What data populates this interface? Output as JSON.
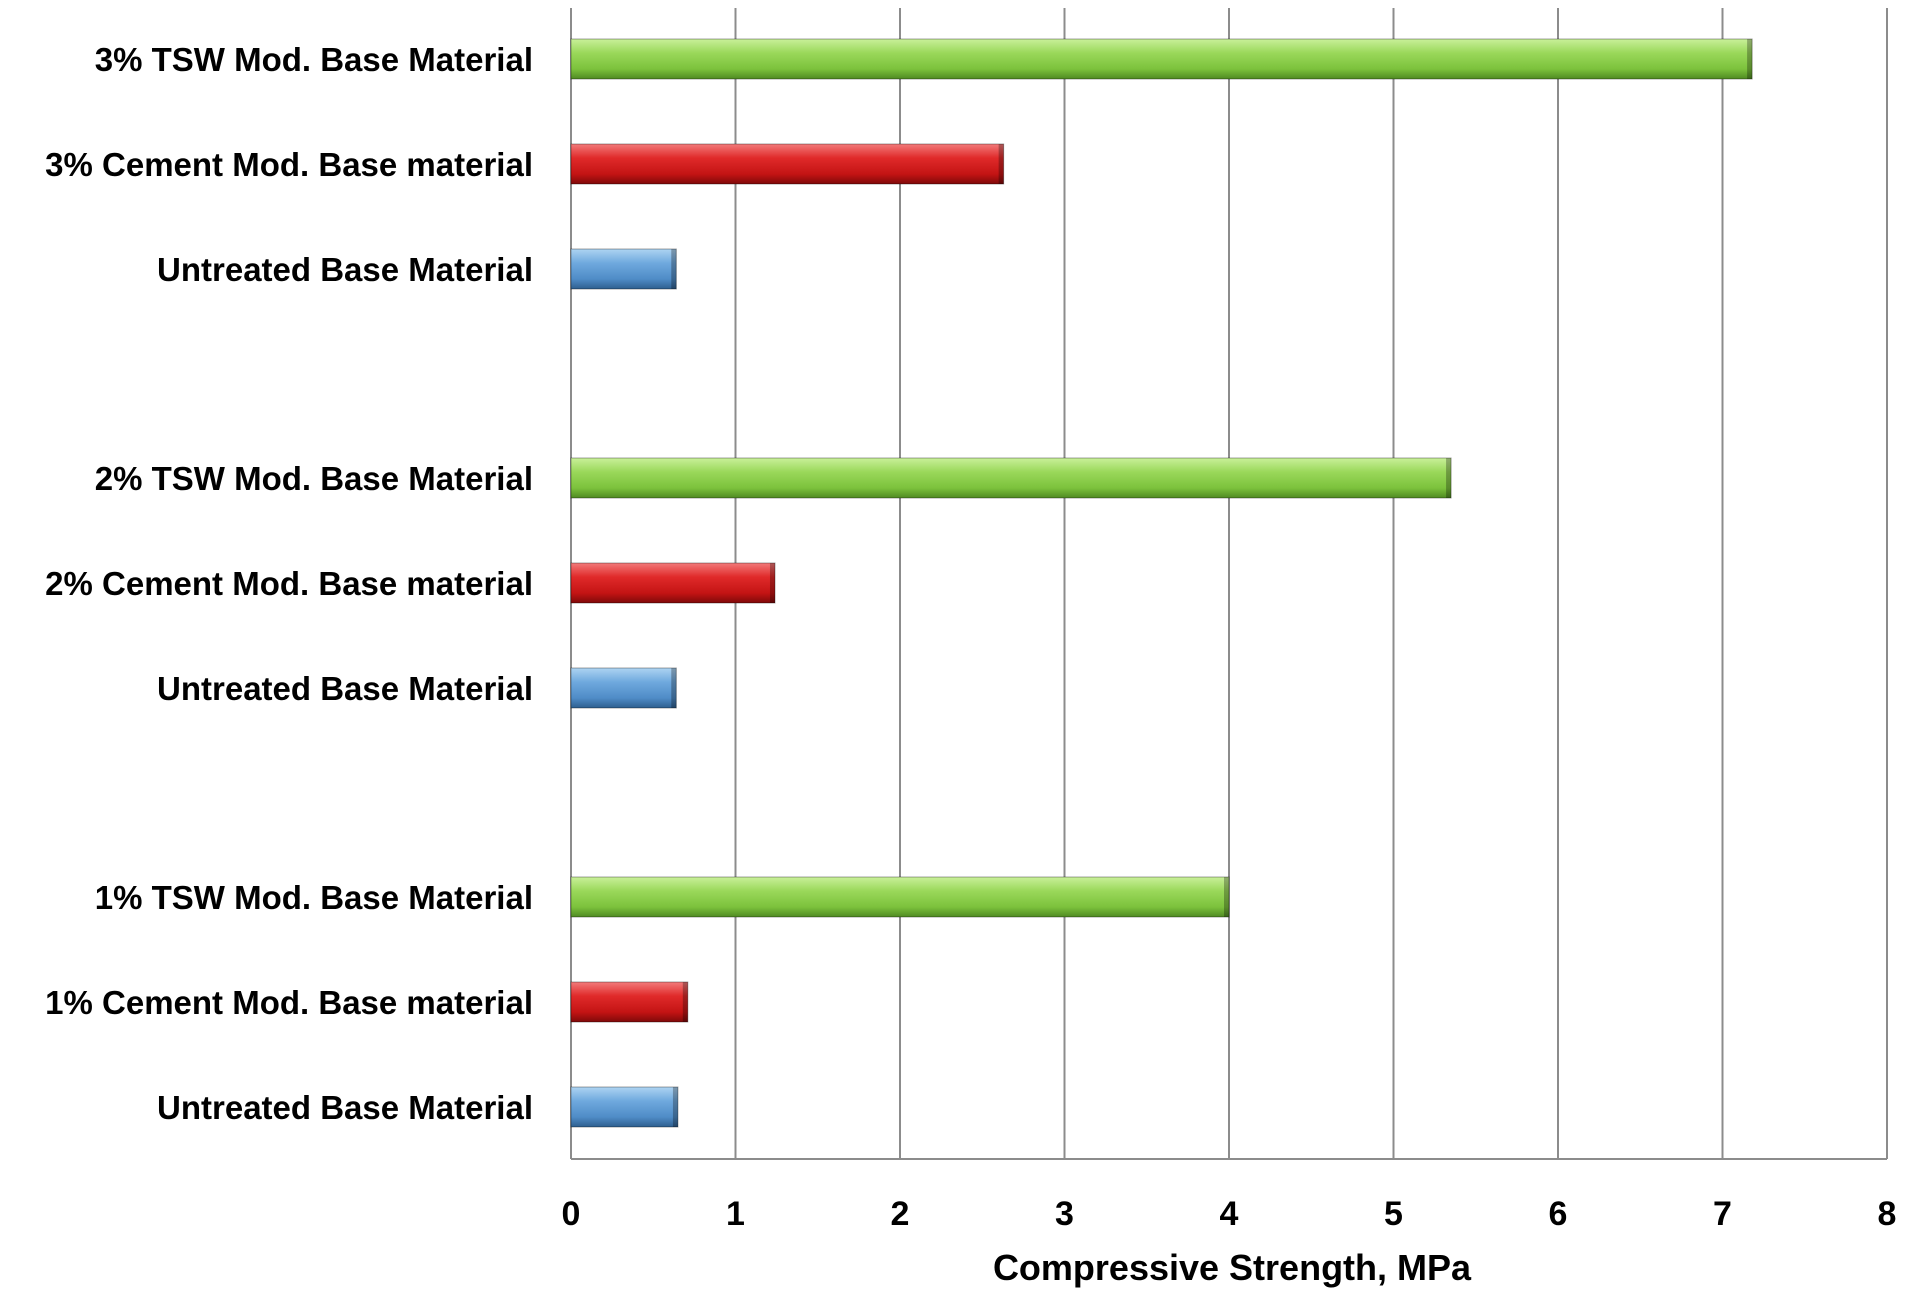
{
  "chart_data": {
    "type": "bar",
    "orientation": "horizontal",
    "title": "",
    "xlabel": "Compressive Strength, MPa",
    "ylabel": "",
    "xlim": [
      0,
      8
    ],
    "xticks": [
      0,
      1,
      2,
      3,
      4,
      5,
      6,
      7,
      8
    ],
    "grid": true,
    "legend": "none",
    "categories": [
      "3% TSW Mod. Base Material",
      "3% Cement Mod. Base material",
      "Untreated Base Material",
      "2% TSW Mod. Base Material",
      "2% Cement Mod. Base material",
      "Untreated Base Material",
      "1% TSW Mod. Base Material",
      "1% Cement Mod. Base material",
      "Untreated Base Material"
    ],
    "values": [
      7.18,
      2.63,
      0.64,
      5.35,
      1.24,
      0.64,
      4.0,
      0.71,
      0.65
    ],
    "bar_colors": [
      "#8fd14f",
      "#d42020",
      "#5b9bd5",
      "#8fd14f",
      "#d42020",
      "#5b9bd5",
      "#8fd14f",
      "#d42020",
      "#5b9bd5"
    ],
    "colors": {
      "tsw": "#8fd14f",
      "cement": "#d42020",
      "untreated": "#5b9bd5",
      "gridline": "#8c8c8c"
    }
  }
}
